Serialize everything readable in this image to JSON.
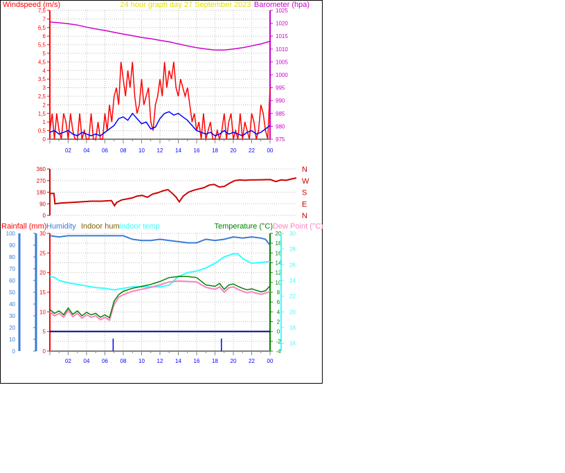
{
  "colors": {
    "red": "#ff0000",
    "darkred": "#cc0000",
    "blue": "#0000ff",
    "magenta": "#cc00cc",
    "yellow": "#e0e000",
    "humidity": "#3a7bd5",
    "indoorhum": "#806000",
    "cyan": "#33ffff",
    "green": "#008000",
    "pink": "#ff80c0",
    "navy": "#000080",
    "grid": "#bbbbbb"
  },
  "header": {
    "left": "Windspeed (m/s)",
    "center": "24 hour graph day   27 September 2023",
    "right": "Barometer (hpa)"
  },
  "legend": {
    "rainfall": "Rainfall (mm)",
    "humidity": "Humidity",
    "indoor_hum": "Indoor hum",
    "indoor_temp": "Indoor temp",
    "temperature": "Temperature (°C)",
    "dew_point": "Dew Point (°C)"
  },
  "chart_data": [
    {
      "type": "line",
      "x_ticks": [
        "02",
        "04",
        "06",
        "08",
        "10",
        "12",
        "14",
        "16",
        "18",
        "20",
        "22",
        "00"
      ],
      "y_left_ticks": [
        "7,5",
        "7",
        "6,5",
        "6",
        "5,5",
        "5",
        "4,5",
        "4",
        "3,5",
        "3",
        "2,5",
        "2",
        "1,5",
        "1",
        "0,5",
        "0"
      ],
      "y_left_range": [
        0,
        7.5
      ],
      "y_right_ticks": [
        "1025",
        "1020",
        "1015",
        "1010",
        "1005",
        "1000",
        "995",
        "990",
        "985",
        "980",
        "975"
      ],
      "y_right_range": [
        975,
        1025
      ],
      "series": [
        {
          "name": "Barometer",
          "axis": "right",
          "x": [
            0,
            1,
            2,
            3,
            4,
            5,
            6,
            7,
            8,
            9,
            10,
            11,
            12,
            13,
            14,
            15,
            16,
            17,
            18,
            19,
            20,
            21,
            22,
            23,
            24
          ],
          "y": [
            1020.5,
            1020.2,
            1019.8,
            1019.3,
            1018.5,
            1017.8,
            1017.2,
            1016.5,
            1015.8,
            1015.2,
            1014.5,
            1014,
            1013.4,
            1012.8,
            1012,
            1011.2,
            1010.5,
            1010,
            1009.6,
            1009.6,
            1010,
            1010.5,
            1011.2,
            1012,
            1013
          ]
        },
        {
          "name": "Windspeed (m/s)",
          "axis": "left",
          "x": [
            0,
            0.25,
            0.5,
            0.75,
            1,
            1.25,
            1.5,
            1.75,
            2,
            2.25,
            2.5,
            2.75,
            3,
            3.25,
            3.5,
            3.75,
            4,
            4.25,
            4.5,
            4.75,
            5,
            5.25,
            5.5,
            5.75,
            6,
            6.25,
            6.5,
            6.75,
            7,
            7.25,
            7.5,
            7.75,
            8,
            8.25,
            8.5,
            8.75,
            9,
            9.25,
            9.5,
            9.75,
            10,
            10.25,
            10.5,
            10.75,
            11,
            11.25,
            11.5,
            11.75,
            12,
            12.25,
            12.5,
            12.75,
            13,
            13.25,
            13.5,
            13.75,
            14,
            14.25,
            14.5,
            14.75,
            15,
            15.25,
            15.5,
            15.75,
            16,
            16.25,
            16.5,
            16.75,
            17,
            17.25,
            17.5,
            17.75,
            18,
            18.25,
            18.5,
            18.75,
            19,
            19.25,
            19.5,
            19.75,
            20,
            20.25,
            20.5,
            20.75,
            21,
            21.25,
            21.5,
            21.75,
            22,
            22.25,
            22.5,
            22.75,
            23,
            23.25,
            23.5,
            23.75,
            24
          ],
          "y": [
            0.5,
            1.5,
            0,
            1.5,
            0.5,
            0,
            1.5,
            1,
            0,
            1.5,
            0.5,
            0,
            0,
            1.5,
            0,
            0.5,
            0,
            0,
            1.5,
            0,
            0,
            1,
            0,
            0,
            1.5,
            0.5,
            2,
            1,
            2.5,
            3,
            2,
            4.5,
            3.5,
            2.5,
            4,
            3,
            4.5,
            2.5,
            1.5,
            2,
            3.5,
            2,
            2.5,
            3,
            1,
            0.5,
            2,
            2.5,
            3.5,
            2.5,
            4.5,
            3,
            4,
            3.5,
            4.5,
            3,
            2.5,
            3.5,
            3,
            2.5,
            3,
            2,
            1,
            1.5,
            0.5,
            1,
            0,
            1.5,
            0,
            0.5,
            1,
            0,
            0,
            0.5,
            0,
            0.5,
            1.5,
            0,
            1,
            1.5,
            0,
            0.5,
            0,
            1.5,
            0,
            1,
            0.5,
            0,
            1.5,
            1,
            0,
            0.5,
            2,
            1.5,
            0.5,
            0,
            3
          ]
        },
        {
          "name": "Wind average",
          "axis": "left",
          "x": [
            0,
            0.5,
            1,
            1.5,
            2,
            2.5,
            3,
            3.5,
            4,
            4.5,
            5,
            5.5,
            6,
            6.5,
            7,
            7.5,
            8,
            8.5,
            9,
            9.5,
            10,
            10.5,
            11,
            11.5,
            12,
            12.5,
            13,
            13.5,
            14,
            14.5,
            15,
            15.5,
            16,
            16.5,
            17,
            17.5,
            18,
            18.5,
            19,
            19.5,
            20,
            20.5,
            21,
            21.5,
            22,
            22.5,
            23,
            23.5,
            24
          ],
          "y": [
            0.4,
            0.5,
            0.3,
            0.4,
            0.5,
            0.3,
            0.2,
            0.4,
            0.3,
            0.2,
            0.3,
            0.2,
            0.4,
            0.6,
            0.8,
            1.2,
            1.3,
            1.1,
            1.5,
            1.2,
            0.9,
            1,
            0.6,
            0.7,
            1.2,
            1.5,
            1.6,
            1.4,
            1.5,
            1.3,
            1.1,
            0.8,
            0.5,
            0.4,
            0.3,
            0.4,
            0.2,
            0.3,
            0.5,
            0.3,
            0.4,
            0.3,
            0.2,
            0.4,
            0.5,
            0.3,
            0.4,
            0.6,
            0.8
          ]
        }
      ]
    },
    {
      "type": "line",
      "x_ticks": [],
      "y_left_ticks": [
        "360",
        "270",
        "180",
        "90",
        "0"
      ],
      "y_left_range": [
        0,
        360
      ],
      "y_right_labels": [
        "N",
        "W",
        "S",
        "E",
        "N"
      ],
      "series": [
        {
          "name": "Wind direction",
          "x": [
            0,
            0.4,
            0.5,
            1,
            2,
            3,
            4,
            5,
            6,
            6.3,
            6.5,
            7,
            8,
            8.5,
            9,
            9.5,
            10,
            10.5,
            11,
            11.5,
            12,
            12.3,
            12.6,
            13,
            13.5,
            14,
            14.5,
            15,
            15.5,
            16,
            16.5,
            17,
            17.5,
            18,
            18.5,
            19,
            19.5,
            20,
            20.5,
            21,
            21.5,
            22,
            22.5,
            23,
            23.5,
            24
          ],
          "y": [
            170,
            170,
            90,
            95,
            100,
            105,
            110,
            110,
            115,
            75,
            100,
            120,
            135,
            150,
            155,
            140,
            165,
            175,
            190,
            200,
            165,
            140,
            105,
            150,
            180,
            195,
            205,
            215,
            235,
            240,
            220,
            225,
            250,
            270,
            275,
            272,
            275,
            275,
            276,
            277,
            277,
            262,
            275,
            272,
            282,
            290
          ]
        }
      ]
    },
    {
      "type": "line",
      "x_ticks": [
        "02",
        "04",
        "06",
        "08",
        "10",
        "12",
        "14",
        "16",
        "18",
        "20",
        "22",
        "00"
      ],
      "y_rain_ticks": [
        "30",
        "25",
        "20",
        "15",
        "10",
        "5",
        "0"
      ],
      "y_rain_range": [
        0,
        30
      ],
      "y_hum_ticks": [
        "100",
        "90",
        "80",
        "70",
        "60",
        "50",
        "40",
        "30",
        "20",
        "10",
        "0"
      ],
      "y_hum_range": [
        0,
        100
      ],
      "y_temp_ticks": [
        "20",
        "18",
        "16",
        "14",
        "12",
        "10",
        "8",
        "6",
        "4",
        "2",
        "0",
        "-2",
        "-4"
      ],
      "y_temp_range": [
        -4,
        20
      ],
      "y_indoor_ticks": [
        "30",
        "28",
        "26",
        "24",
        "22",
        "20",
        "18",
        "16"
      ],
      "y_indoor_range": [
        15,
        30
      ],
      "series": [
        {
          "name": "Humidity",
          "x": [
            0,
            1,
            2,
            3,
            4,
            5,
            6,
            7,
            8,
            9,
            10,
            11,
            12,
            13,
            14,
            15,
            16,
            17,
            18,
            19,
            20,
            21,
            22,
            23,
            23.5,
            24
          ],
          "y": [
            98,
            97,
            98,
            98,
            98,
            98,
            98,
            98,
            98,
            95,
            94,
            94,
            95,
            94,
            93,
            92,
            92,
            95,
            94,
            95,
            97,
            96,
            97,
            96,
            95,
            90
          ]
        },
        {
          "name": "Indoor temp",
          "x": [
            0,
            0.5,
            1,
            2,
            3,
            4,
            5,
            6,
            7,
            8,
            9,
            10,
            11,
            12,
            13,
            14,
            15,
            16,
            17,
            18,
            19,
            20,
            20.5,
            21,
            22,
            23,
            24
          ],
          "y": [
            24.5,
            24.4,
            24,
            23.7,
            23.5,
            23.3,
            23.1,
            23,
            22.8,
            23,
            23.2,
            23.2,
            23.2,
            23.2,
            23.4,
            24.5,
            25,
            25.2,
            25.6,
            26.2,
            27,
            27.4,
            27.4,
            26.8,
            26.2,
            26.3,
            26.4
          ]
        },
        {
          "name": "Temperature (°C)",
          "x": [
            0,
            0.5,
            1,
            1.5,
            2,
            2.5,
            3,
            3.5,
            4,
            4.5,
            5,
            5.5,
            6,
            6.5,
            7,
            7.5,
            8,
            9,
            10,
            11,
            12,
            13,
            14,
            15,
            16,
            17,
            18,
            18.5,
            19,
            19.5,
            20,
            20.5,
            21,
            21.5,
            22,
            22.5,
            23,
            23.5,
            24
          ],
          "y": [
            4.5,
            3.7,
            4.2,
            3.4,
            4.8,
            3.5,
            4.2,
            3.2,
            3.9,
            3.4,
            3.7,
            2.9,
            3.4,
            2.8,
            6.2,
            7.5,
            8.2,
            8.8,
            9.2,
            9.6,
            10.2,
            11,
            11.2,
            11.2,
            11,
            9.5,
            9.2,
            9.8,
            8.6,
            9.5,
            9.7,
            9.2,
            8.8,
            8.5,
            8.7,
            8.4,
            8.1,
            8.3,
            9.3
          ]
        },
        {
          "name": "Dew Point (°C)",
          "x": [
            0,
            0.5,
            1,
            1.5,
            2,
            2.5,
            3,
            3.5,
            4,
            4.5,
            5,
            5.5,
            6,
            6.5,
            7,
            7.5,
            8,
            9,
            10,
            11,
            12,
            13,
            14,
            15,
            16,
            17,
            18,
            18.5,
            19,
            19.5,
            20,
            20.5,
            21,
            21.5,
            22,
            22.5,
            23,
            23.5,
            24
          ],
          "y": [
            4,
            3.2,
            3.7,
            2.9,
            4.3,
            3,
            3.7,
            2.7,
            3.4,
            2.9,
            3.2,
            2.4,
            2.9,
            2.3,
            5.5,
            7,
            7.5,
            8.2,
            8.6,
            9,
            9.5,
            10.1,
            10.3,
            10.2,
            10.1,
            9,
            8.6,
            9.1,
            8,
            8.9,
            9.1,
            8.6,
            8.2,
            7.9,
            8.1,
            7.8,
            7.6,
            7.8,
            8.2
          ]
        },
        {
          "name": "Rainfall (mm)",
          "x": [
            0,
            24
          ],
          "y": [
            0,
            0
          ]
        },
        {
          "name": "Rain markers",
          "x": [
            6.9,
            18.7
          ],
          "y": [
            2.5,
            2.5
          ]
        }
      ]
    }
  ]
}
